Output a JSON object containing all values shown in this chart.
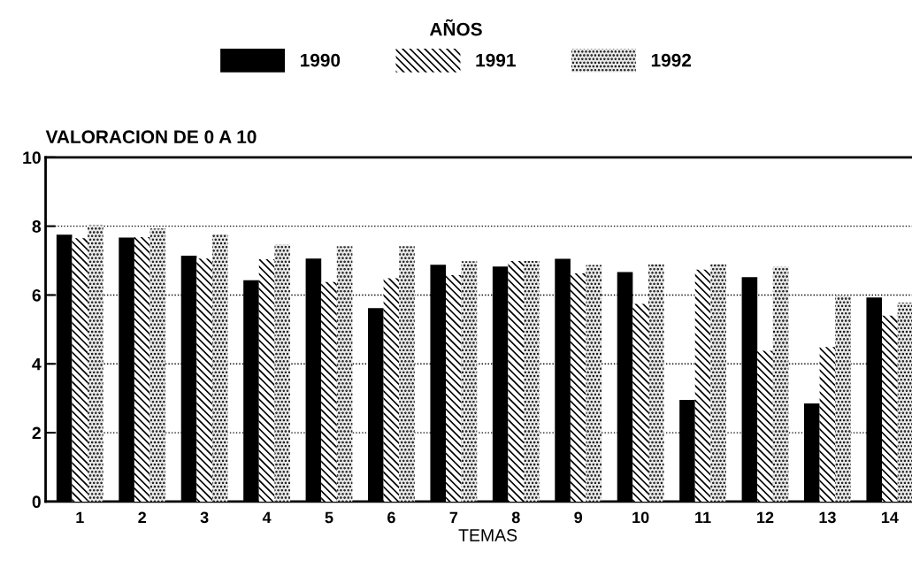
{
  "chart_data": {
    "type": "bar",
    "legend_title": "AÑOS",
    "ylabel": "VALORACION DE 0 A 10",
    "xlabel": "TEMAS",
    "categories": [
      "1",
      "2",
      "3",
      "4",
      "5",
      "6",
      "7",
      "8",
      "9",
      "10",
      "11",
      "12",
      "13",
      "14"
    ],
    "series": [
      {
        "name": "1990",
        "color": "#000000",
        "values": [
          7.75,
          7.67,
          7.14,
          6.43,
          7.06,
          5.62,
          6.88,
          6.83,
          7.05,
          6.67,
          2.95,
          6.52,
          2.85,
          5.93
        ]
      },
      {
        "name": "1991",
        "color": "#ffffff",
        "values": [
          7.65,
          7.68,
          7.06,
          7.04,
          6.38,
          6.49,
          6.58,
          6.99,
          6.63,
          5.74,
          6.74,
          4.38,
          4.49,
          5.4
        ]
      },
      {
        "name": "1992",
        "color": "#e8e8e8",
        "values": [
          8.03,
          7.93,
          7.77,
          7.47,
          7.42,
          7.42,
          6.98,
          6.99,
          6.87,
          6.89,
          6.9,
          6.83,
          5.97,
          5.78
        ]
      }
    ],
    "ylim": [
      0,
      10
    ],
    "yticks": [
      0,
      2,
      4,
      6,
      8,
      10
    ],
    "grid": "y",
    "legend": "top"
  }
}
